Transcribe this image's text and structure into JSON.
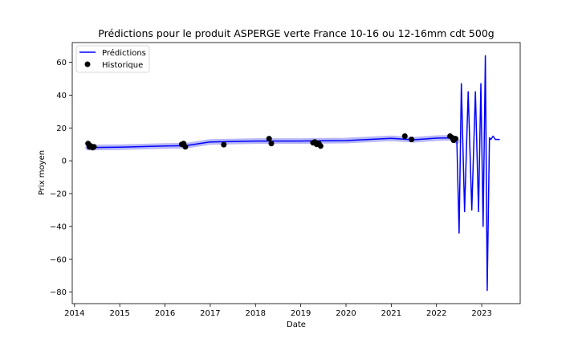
{
  "chart_data": {
    "type": "line",
    "title": "Prédictions pour le produit ASPERGE verte France 10-16 ou 12-16mm cdt 500g",
    "xlabel": "Date",
    "ylabel": "Prix moyen",
    "xlim": [
      2013.95,
      2023.85
    ],
    "ylim": [
      -87,
      72
    ],
    "x_ticks": [
      "2014",
      "2015",
      "2016",
      "2017",
      "2018",
      "2019",
      "2020",
      "2021",
      "2022",
      "2023"
    ],
    "y_ticks": [
      "−80",
      "−60",
      "−40",
      "−20",
      "0",
      "20",
      "40",
      "60"
    ],
    "y_tick_values": [
      -80,
      -60,
      -40,
      -20,
      0,
      20,
      40,
      60
    ],
    "legend": {
      "placement": "top-left",
      "entries": [
        "Prédictions",
        "Historique"
      ]
    },
    "colors": {
      "prediction_line": "#0000ff",
      "confidence_band": "#b8b8f5",
      "history_points": "#000000"
    },
    "series": [
      {
        "name": "Prédictions",
        "style": "line",
        "x": [
          2014.3,
          2015.0,
          2016.0,
          2016.45,
          2017.0,
          2018.0,
          2019.0,
          2019.5,
          2020.0,
          2021.0,
          2021.5,
          2022.0,
          2022.3,
          2022.45,
          2022.5,
          2022.55,
          2022.62,
          2022.7,
          2022.78,
          2022.86,
          2022.93,
          2022.98,
          2023.03,
          2023.08,
          2023.12,
          2023.17,
          2023.2,
          2023.25,
          2023.3,
          2023.4
        ],
        "y": [
          8,
          8.3,
          9,
          9.2,
          11.5,
          12,
          12,
          12.2,
          12.3,
          13.7,
          12.8,
          13.8,
          14,
          12,
          -44,
          47,
          -31,
          42,
          -30,
          42,
          -31,
          47,
          -40,
          64,
          -79,
          14,
          13,
          15,
          13,
          13
        ]
      },
      {
        "name": "Historique",
        "style": "scatter",
        "x": [
          2014.3,
          2014.33,
          2014.36,
          2014.4,
          2014.43,
          2016.37,
          2016.41,
          2016.45,
          2017.3,
          2018.3,
          2018.35,
          2019.27,
          2019.31,
          2019.35,
          2019.4,
          2019.44,
          2021.3,
          2021.45,
          2022.3,
          2022.35,
          2022.38,
          2022.42
        ],
        "y": [
          10.5,
          8.5,
          9,
          8,
          8.5,
          10,
          10.5,
          8.5,
          9.8,
          13.5,
          10.5,
          11,
          11.5,
          10,
          10.5,
          9,
          15,
          13,
          15,
          14,
          12.5,
          13.5
        ]
      }
    ]
  }
}
